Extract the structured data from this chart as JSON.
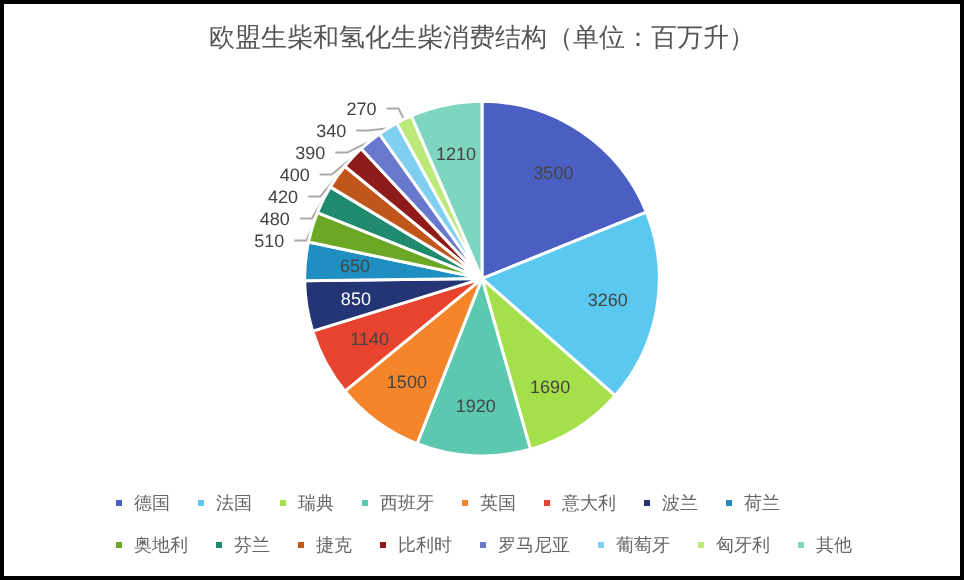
{
  "chart_data": {
    "type": "pie",
    "title": "欧盟生柴和氢化生柴消费结构（单位：百万升）",
    "categories": [
      "德国",
      "法国",
      "瑞典",
      "西班牙",
      "英国",
      "意大利",
      "波兰",
      "荷兰",
      "奥地利",
      "芬兰",
      "捷克",
      "比利时",
      "罗马尼亚",
      "葡萄牙",
      "匈牙利",
      "其他"
    ],
    "values": [
      3500,
      3260,
      1690,
      1920,
      1500,
      1140,
      850,
      650,
      510,
      480,
      420,
      400,
      390,
      340,
      270,
      1210
    ],
    "colors": [
      "#4a5fc1",
      "#5bc8f0",
      "#a5e04a",
      "#5cc8b0",
      "#f5852a",
      "#e8432e",
      "#233574",
      "#1e8fc0",
      "#6aa825",
      "#1f8a6e",
      "#c0561a",
      "#8e1a1a",
      "#6878cc",
      "#7fd0f0",
      "#bde87a",
      "#7fd6c0"
    ],
    "data_labels": true,
    "legend": "bottom"
  }
}
